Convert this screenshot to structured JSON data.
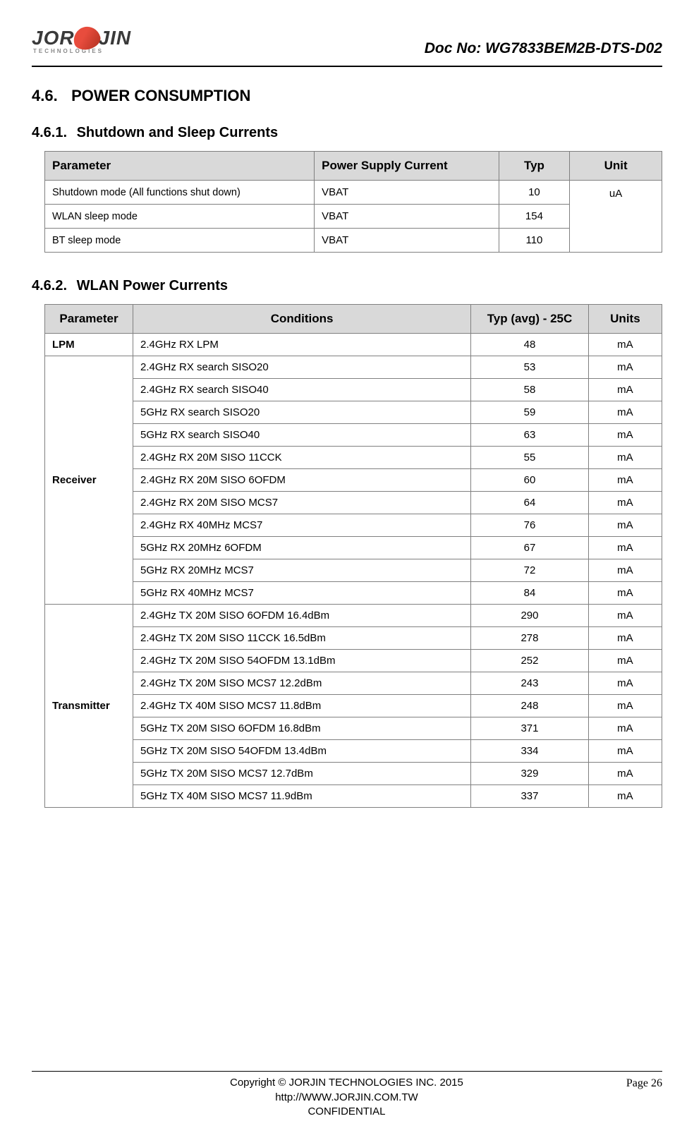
{
  "header": {
    "logo_main_before": "JOR",
    "logo_main_after": "JIN",
    "logo_sub": "TECHNOLOGIES",
    "doc_no": "Doc No: WG7833BEM2B-DTS-D02"
  },
  "section_1": {
    "num": "4.6.",
    "title": "POWER CONSUMPTION"
  },
  "section_1_1": {
    "num": "4.6.1.",
    "title": "Shutdown and Sleep Currents"
  },
  "table1": {
    "headers": {
      "param": "Parameter",
      "psc": "Power Supply Current",
      "typ": "Typ",
      "unit": "Unit"
    },
    "rows": [
      {
        "param": "Shutdown mode (All functions shut down)",
        "psc": "VBAT",
        "typ": "10"
      },
      {
        "param": "WLAN sleep mode",
        "psc": "VBAT",
        "typ": "154"
      },
      {
        "param": "BT sleep mode",
        "psc": "VBAT",
        "typ": "110"
      }
    ],
    "unit": "uA"
  },
  "section_1_2": {
    "num": "4.6.2.",
    "title": "WLAN Power Currents"
  },
  "table2": {
    "headers": {
      "param": "Parameter",
      "cond": "Conditions",
      "typ": "Typ (avg) - 25C",
      "units": "Units"
    },
    "groups": [
      {
        "param": "LPM",
        "rows": [
          {
            "cond": "2.4GHz RX LPM",
            "typ": "48",
            "unit": "mA"
          }
        ]
      },
      {
        "param": "Receiver",
        "rows": [
          {
            "cond": "2.4GHz RX search SISO20",
            "typ": "53",
            "unit": "mA"
          },
          {
            "cond": "2.4GHz RX search SISO40",
            "typ": "58",
            "unit": "mA"
          },
          {
            "cond": "5GHz RX search SISO20",
            "typ": "59",
            "unit": "mA"
          },
          {
            "cond": "5GHz RX search SISO40",
            "typ": "63",
            "unit": "mA"
          },
          {
            "cond": "2.4GHz RX 20M SISO 11CCK",
            "typ": "55",
            "unit": "mA"
          },
          {
            "cond": "2.4GHz RX 20M SISO 6OFDM",
            "typ": "60",
            "unit": "mA"
          },
          {
            "cond": "2.4GHz RX 20M SISO MCS7",
            "typ": "64",
            "unit": "mA"
          },
          {
            "cond": "2.4GHz RX 40MHz MCS7",
            "typ": "76",
            "unit": "mA"
          },
          {
            "cond": "5GHz RX 20MHz 6OFDM",
            "typ": "67",
            "unit": "mA"
          },
          {
            "cond": "5GHz RX 20MHz MCS7",
            "typ": "72",
            "unit": "mA"
          },
          {
            "cond": "5GHz RX 40MHz MCS7",
            "typ": "84",
            "unit": "mA"
          }
        ]
      },
      {
        "param": "Transmitter",
        "rows": [
          {
            "cond": "2.4GHz TX 20M SISO 6OFDM 16.4dBm",
            "typ": "290",
            "unit": "mA"
          },
          {
            "cond": "2.4GHz TX 20M SISO 11CCK 16.5dBm",
            "typ": "278",
            "unit": "mA"
          },
          {
            "cond": "2.4GHz TX 20M SISO 54OFDM 13.1dBm",
            "typ": "252",
            "unit": "mA"
          },
          {
            "cond": "2.4GHz TX 20M SISO MCS7 12.2dBm",
            "typ": "243",
            "unit": "mA"
          },
          {
            "cond": "2.4GHz TX 40M SISO MCS7 11.8dBm",
            "typ": "248",
            "unit": "mA"
          },
          {
            "cond": "5GHz TX 20M SISO 6OFDM 16.8dBm",
            "typ": "371",
            "unit": "mA"
          },
          {
            "cond": "5GHz TX 20M SISO 54OFDM 13.4dBm",
            "typ": "334",
            "unit": "mA"
          },
          {
            "cond": "5GHz TX 20M SISO MCS7 12.7dBm",
            "typ": "329",
            "unit": "mA"
          },
          {
            "cond": "5GHz TX 40M SISO MCS7 11.9dBm",
            "typ": "337",
            "unit": "mA"
          }
        ]
      }
    ]
  },
  "footer": {
    "copyright": "Copyright © JORJIN TECHNOLOGIES INC. 2015",
    "url": "http://WWW.JORJIN.COM.TW",
    "confidential": "CONFIDENTIAL",
    "page": "Page 26"
  }
}
